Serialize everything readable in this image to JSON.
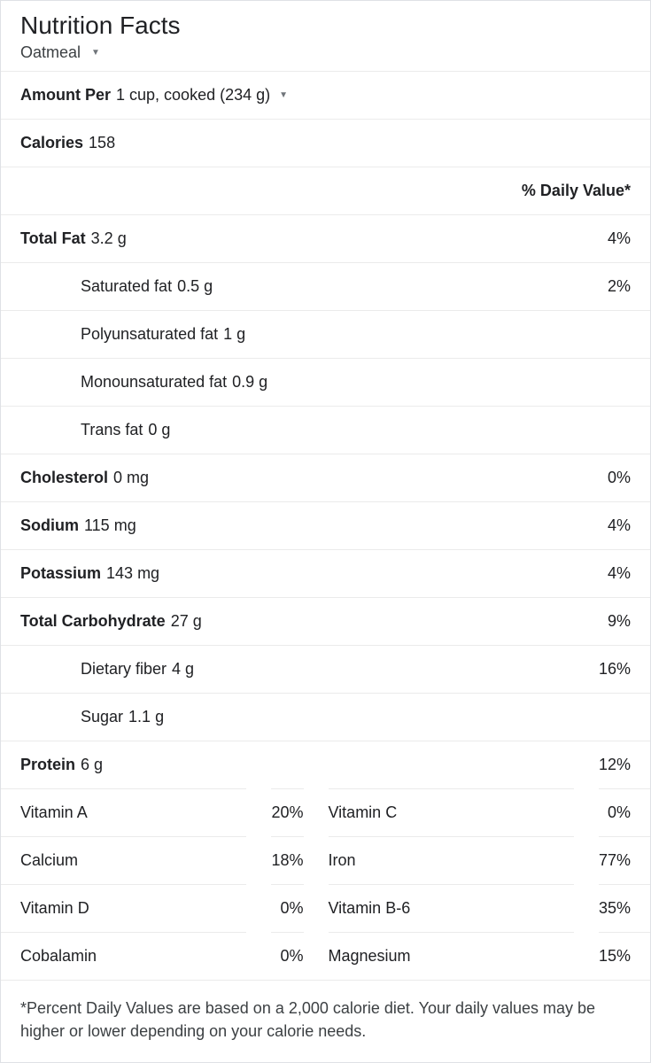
{
  "title": "Nutrition Facts",
  "food_name": "Oatmeal",
  "serving": {
    "label": "Amount Per",
    "value": "1 cup, cooked (234 g)"
  },
  "calories": {
    "label": "Calories",
    "value": "158"
  },
  "dv_header": "% Daily Value*",
  "nutrients": [
    {
      "label": "Total Fat",
      "value": "3.2 g",
      "dv": "4%",
      "bold": true,
      "sub": false
    },
    {
      "label": "Saturated fat",
      "value": "0.5 g",
      "dv": "2%",
      "bold": false,
      "sub": true
    },
    {
      "label": "Polyunsaturated fat",
      "value": "1 g",
      "dv": "",
      "bold": false,
      "sub": true
    },
    {
      "label": "Monounsaturated fat",
      "value": "0.9 g",
      "dv": "",
      "bold": false,
      "sub": true
    },
    {
      "label": "Trans fat",
      "value": "0 g",
      "dv": "",
      "bold": false,
      "sub": true
    },
    {
      "label": "Cholesterol",
      "value": "0 mg",
      "dv": "0%",
      "bold": true,
      "sub": false
    },
    {
      "label": "Sodium",
      "value": "115 mg",
      "dv": "4%",
      "bold": true,
      "sub": false
    },
    {
      "label": "Potassium",
      "value": "143 mg",
      "dv": "4%",
      "bold": true,
      "sub": false
    },
    {
      "label": "Total Carbohydrate",
      "value": "27 g",
      "dv": "9%",
      "bold": true,
      "sub": false
    },
    {
      "label": "Dietary fiber",
      "value": "4 g",
      "dv": "16%",
      "bold": false,
      "sub": true
    },
    {
      "label": "Sugar",
      "value": "1.1 g",
      "dv": "",
      "bold": false,
      "sub": true
    },
    {
      "label": "Protein",
      "value": "6 g",
      "dv": "12%",
      "bold": true,
      "sub": false
    }
  ],
  "vitamins": [
    {
      "l_label": "Vitamin A",
      "l_dv": "20%",
      "r_label": "Vitamin C",
      "r_dv": "0%"
    },
    {
      "l_label": "Calcium",
      "l_dv": "18%",
      "r_label": "Iron",
      "r_dv": "77%"
    },
    {
      "l_label": "Vitamin D",
      "l_dv": "0%",
      "r_label": "Vitamin B-6",
      "r_dv": "35%"
    },
    {
      "l_label": "Cobalamin",
      "l_dv": "0%",
      "r_label": "Magnesium",
      "r_dv": "15%"
    }
  ],
  "footnote": "*Percent Daily Values are based on a 2,000 calorie diet. Your daily values may be higher or lower depending on your calorie needs."
}
